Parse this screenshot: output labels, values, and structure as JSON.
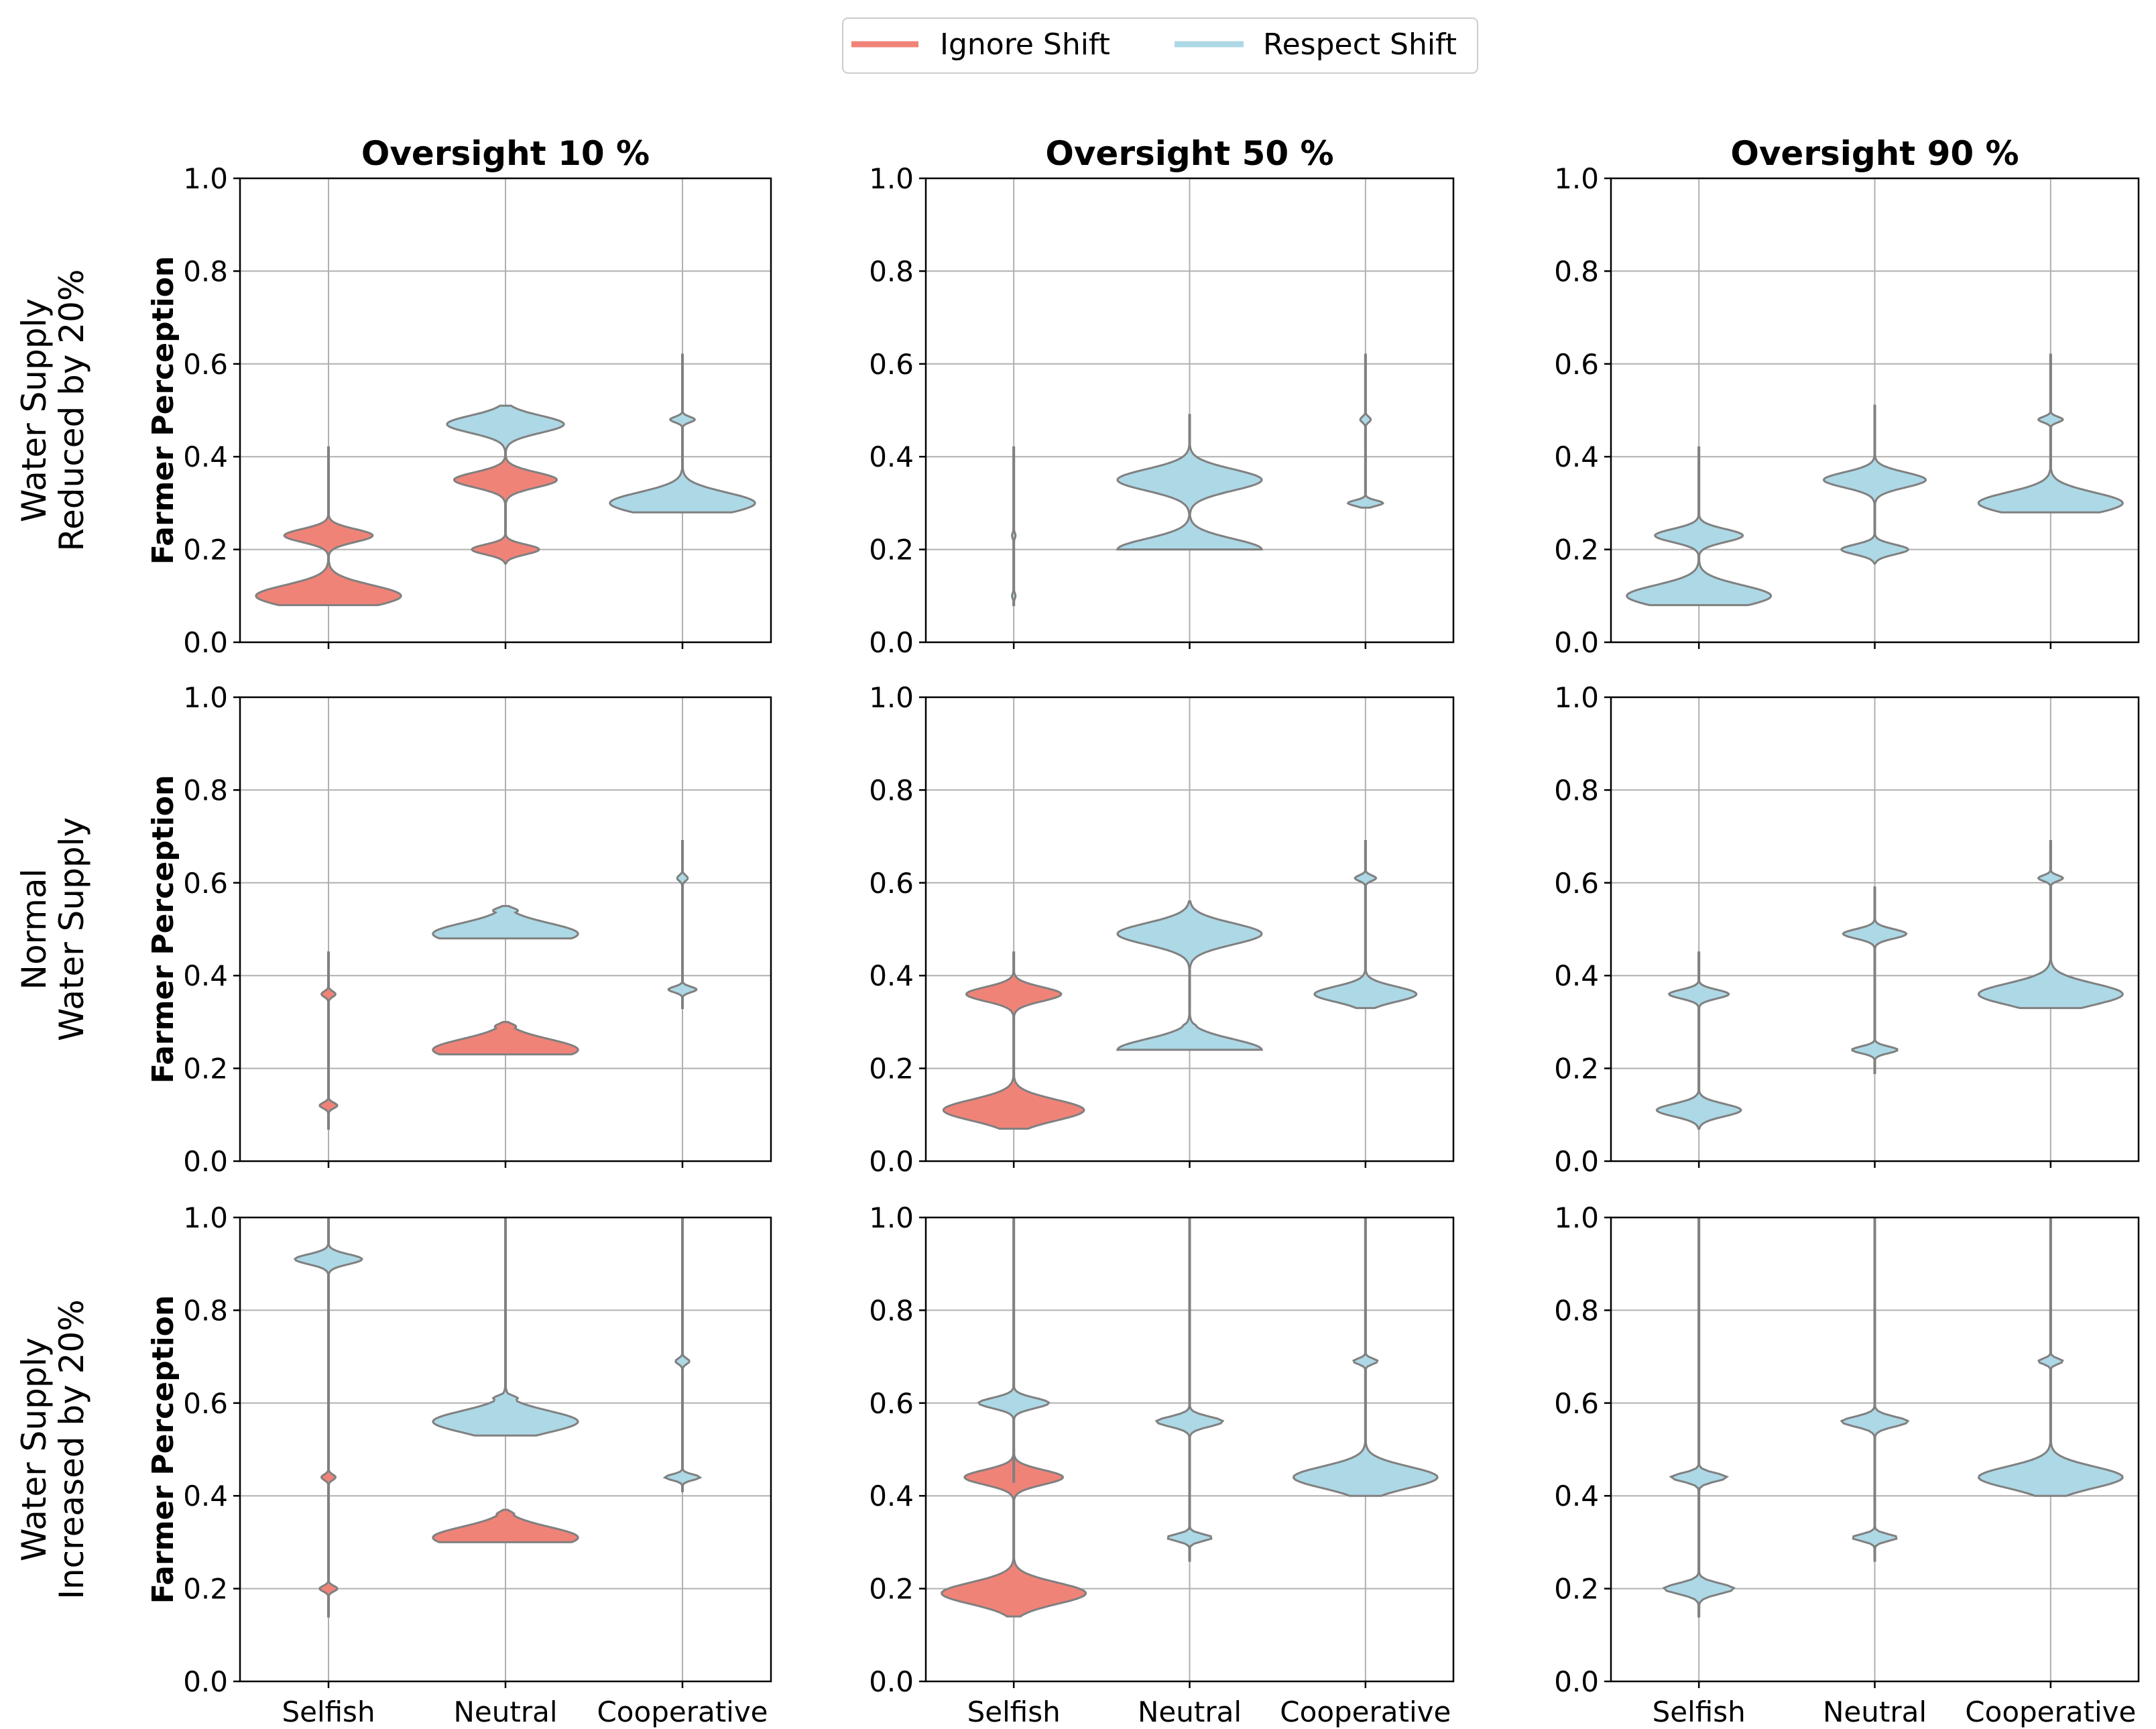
{
  "chart_data": {
    "type": "violin",
    "legend": {
      "placement": "top-center",
      "entries": [
        {
          "name": "Ignore Shift",
          "color": "#F08378"
        },
        {
          "name": "Respect Shift",
          "color": "#ADD8E6"
        }
      ]
    },
    "edge_color": "#808080",
    "grid_color": "#B0B0B0",
    "categories": [
      "Selfish",
      "Neutral",
      "Cooperative"
    ],
    "ylabel": "Farmer Perception",
    "ylim": [
      0,
      1
    ],
    "yticks": [
      "0.0",
      "0.2",
      "0.4",
      "0.6",
      "0.8",
      "1.0"
    ],
    "column_titles": [
      "Oversight 10 %",
      "Oversight 50 %",
      "Oversight 90 %"
    ],
    "row_titles": [
      [
        "Water Supply",
        "Reduced by 20%"
      ],
      [
        "Normal",
        "Water Supply"
      ],
      [
        "Water Supply",
        "Increased by 20%"
      ]
    ],
    "panels": [
      [
        [
          {
            "series": "Ignore Shift",
            "range": [
              0.08,
              0.42
            ],
            "modes": [
              {
                "y": 0.1,
                "w": 0.82
              },
              {
                "y": 0.23,
                "w": 0.5
              }
            ]
          },
          {
            "series": "Ignore Shift",
            "range": [
              0.17,
              0.4
            ],
            "modes": [
              {
                "y": 0.35,
                "w": 0.58
              },
              {
                "y": 0.2,
                "w": 0.38
              }
            ]
          },
          {
            "series": "Respect Shift",
            "range": [
              0.4,
              0.51
            ],
            "modes": [
              {
                "y": 0.47,
                "w": 0.66
              }
            ]
          },
          {
            "series": "Respect Shift",
            "range": [
              0.28,
              0.62
            ],
            "modes": [
              {
                "y": 0.3,
                "w": 0.82
              },
              {
                "y": 0.48,
                "w": 0.14
              }
            ]
          }
        ],
        [
          {
            "series": "Respect Shift",
            "range": [
              0.08,
              0.42
            ],
            "modes": [
              {
                "y": 0.1,
                "w": 0.02
              },
              {
                "y": 0.23,
                "w": 0.02
              }
            ]
          },
          {
            "series": "Respect Shift",
            "range": [
              0.2,
              0.49
            ],
            "modes": [
              {
                "y": 0.35,
                "w": 0.82
              },
              {
                "y": 0.2,
                "w": 0.82
              },
              {
                "y": 0.38,
                "w": 0.14
              }
            ]
          },
          {
            "series": "Respect Shift",
            "range": [
              0.29,
              0.62
            ],
            "modes": [
              {
                "y": 0.3,
                "w": 0.2
              },
              {
                "y": 0.48,
                "w": 0.06
              }
            ]
          }
        ],
        [
          {
            "series": "Respect Shift",
            "range": [
              0.08,
              0.42
            ],
            "modes": [
              {
                "y": 0.1,
                "w": 0.82
              },
              {
                "y": 0.23,
                "w": 0.5
              }
            ]
          },
          {
            "series": "Respect Shift",
            "range": [
              0.17,
              0.51
            ],
            "modes": [
              {
                "y": 0.35,
                "w": 0.58
              },
              {
                "y": 0.2,
                "w": 0.38
              }
            ]
          },
          {
            "series": "Respect Shift",
            "range": [
              0.28,
              0.62
            ],
            "modes": [
              {
                "y": 0.3,
                "w": 0.82
              },
              {
                "y": 0.48,
                "w": 0.14
              }
            ]
          }
        ]
      ],
      [
        [
          {
            "series": "Ignore Shift",
            "range": [
              0.07,
              0.45
            ],
            "modes": [
              {
                "y": 0.12,
                "w": 0.1
              },
              {
                "y": 0.36,
                "w": 0.08
              }
            ]
          },
          {
            "series": "Ignore Shift",
            "range": [
              0.23,
              0.3
            ],
            "modes": [
              {
                "y": 0.24,
                "w": 0.82
              },
              {
                "y": 0.29,
                "w": 0.12
              }
            ]
          },
          {
            "series": "Respect Shift",
            "range": [
              0.48,
              0.55
            ],
            "modes": [
              {
                "y": 0.49,
                "w": 0.82
              },
              {
                "y": 0.54,
                "w": 0.14
              }
            ]
          },
          {
            "series": "Respect Shift",
            "range": [
              0.33,
              0.69
            ],
            "modes": [
              {
                "y": 0.37,
                "w": 0.16
              },
              {
                "y": 0.61,
                "w": 0.06
              }
            ]
          }
        ],
        [
          {
            "series": "Ignore Shift",
            "range": [
              0.07,
              0.45
            ],
            "modes": [
              {
                "y": 0.11,
                "w": 0.8
              },
              {
                "y": 0.36,
                "w": 0.54
              }
            ]
          },
          {
            "series": "Respect Shift",
            "range": [
              0.24,
              0.56
            ],
            "modes": [
              {
                "y": 0.49,
                "w": 0.82
              },
              {
                "y": 0.29,
                "w": 0.08
              },
              {
                "y": 0.24,
                "w": 0.82
              }
            ]
          },
          {
            "series": "Respect Shift",
            "range": [
              0.33,
              0.69
            ],
            "modes": [
              {
                "y": 0.36,
                "w": 0.58
              },
              {
                "y": 0.61,
                "w": 0.12
              }
            ]
          }
        ],
        [
          {
            "series": "Respect Shift",
            "range": [
              0.07,
              0.45
            ],
            "modes": [
              {
                "y": 0.11,
                "w": 0.48
              },
              {
                "y": 0.36,
                "w": 0.34
              }
            ]
          },
          {
            "series": "Respect Shift",
            "range": [
              0.19,
              0.59
            ],
            "modes": [
              {
                "y": 0.49,
                "w": 0.36
              },
              {
                "y": 0.24,
                "w": 0.26
              }
            ]
          },
          {
            "series": "Respect Shift",
            "range": [
              0.33,
              0.69
            ],
            "modes": [
              {
                "y": 0.36,
                "w": 0.82
              },
              {
                "y": 0.61,
                "w": 0.14
              }
            ]
          }
        ]
      ],
      [
        [
          {
            "series": "Ignore Shift",
            "range": [
              0.14,
              0.5
            ],
            "modes": [
              {
                "y": 0.2,
                "w": 0.1
              },
              {
                "y": 0.44,
                "w": 0.08
              }
            ]
          },
          {
            "series": "Respect Shift",
            "range": [
              0.5,
              1.0
            ],
            "modes": [
              {
                "y": 0.91,
                "w": 0.38
              }
            ]
          },
          {
            "series": "Ignore Shift",
            "range": [
              0.3,
              0.37
            ],
            "modes": [
              {
                "y": 0.31,
                "w": 0.82
              },
              {
                "y": 0.36,
                "w": 0.1
              }
            ]
          },
          {
            "series": "Respect Shift",
            "range": [
              0.53,
              1.0
            ],
            "modes": [
              {
                "y": 0.56,
                "w": 0.82
              },
              {
                "y": 0.61,
                "w": 0.14
              }
            ]
          },
          {
            "series": "Respect Shift",
            "range": [
              0.41,
              1.0
            ],
            "modes": [
              {
                "y": 0.44,
                "w": 0.2
              },
              {
                "y": 0.69,
                "w": 0.08
              }
            ]
          }
        ],
        [
          {
            "series": "Ignore Shift",
            "range": [
              0.14,
              0.5
            ],
            "modes": [
              {
                "y": 0.19,
                "w": 0.82
              },
              {
                "y": 0.44,
                "w": 0.56
              }
            ]
          },
          {
            "series": "Respect Shift",
            "range": [
              0.43,
              1.0
            ],
            "modes": [
              {
                "y": 0.6,
                "w": 0.4
              }
            ]
          },
          {
            "series": "Respect Shift",
            "range": [
              0.26,
              1.0
            ],
            "modes": [
              {
                "y": 0.56,
                "w": 0.38
              },
              {
                "y": 0.31,
                "w": 0.26
              }
            ]
          },
          {
            "series": "Respect Shift",
            "range": [
              0.4,
              1.0
            ],
            "modes": [
              {
                "y": 0.44,
                "w": 0.82
              },
              {
                "y": 0.69,
                "w": 0.14
              }
            ]
          }
        ],
        [
          {
            "series": "Respect Shift",
            "range": [
              0.14,
              1.0
            ],
            "modes": [
              {
                "y": 0.2,
                "w": 0.4
              },
              {
                "y": 0.44,
                "w": 0.32
              }
            ]
          },
          {
            "series": "Respect Shift",
            "range": [
              0.26,
              1.0
            ],
            "modes": [
              {
                "y": 0.56,
                "w": 0.38
              },
              {
                "y": 0.31,
                "w": 0.26
              }
            ]
          },
          {
            "series": "Respect Shift",
            "range": [
              0.4,
              1.0
            ],
            "modes": [
              {
                "y": 0.44,
                "w": 0.82
              },
              {
                "y": 0.69,
                "w": 0.14
              }
            ]
          }
        ]
      ]
    ]
  }
}
